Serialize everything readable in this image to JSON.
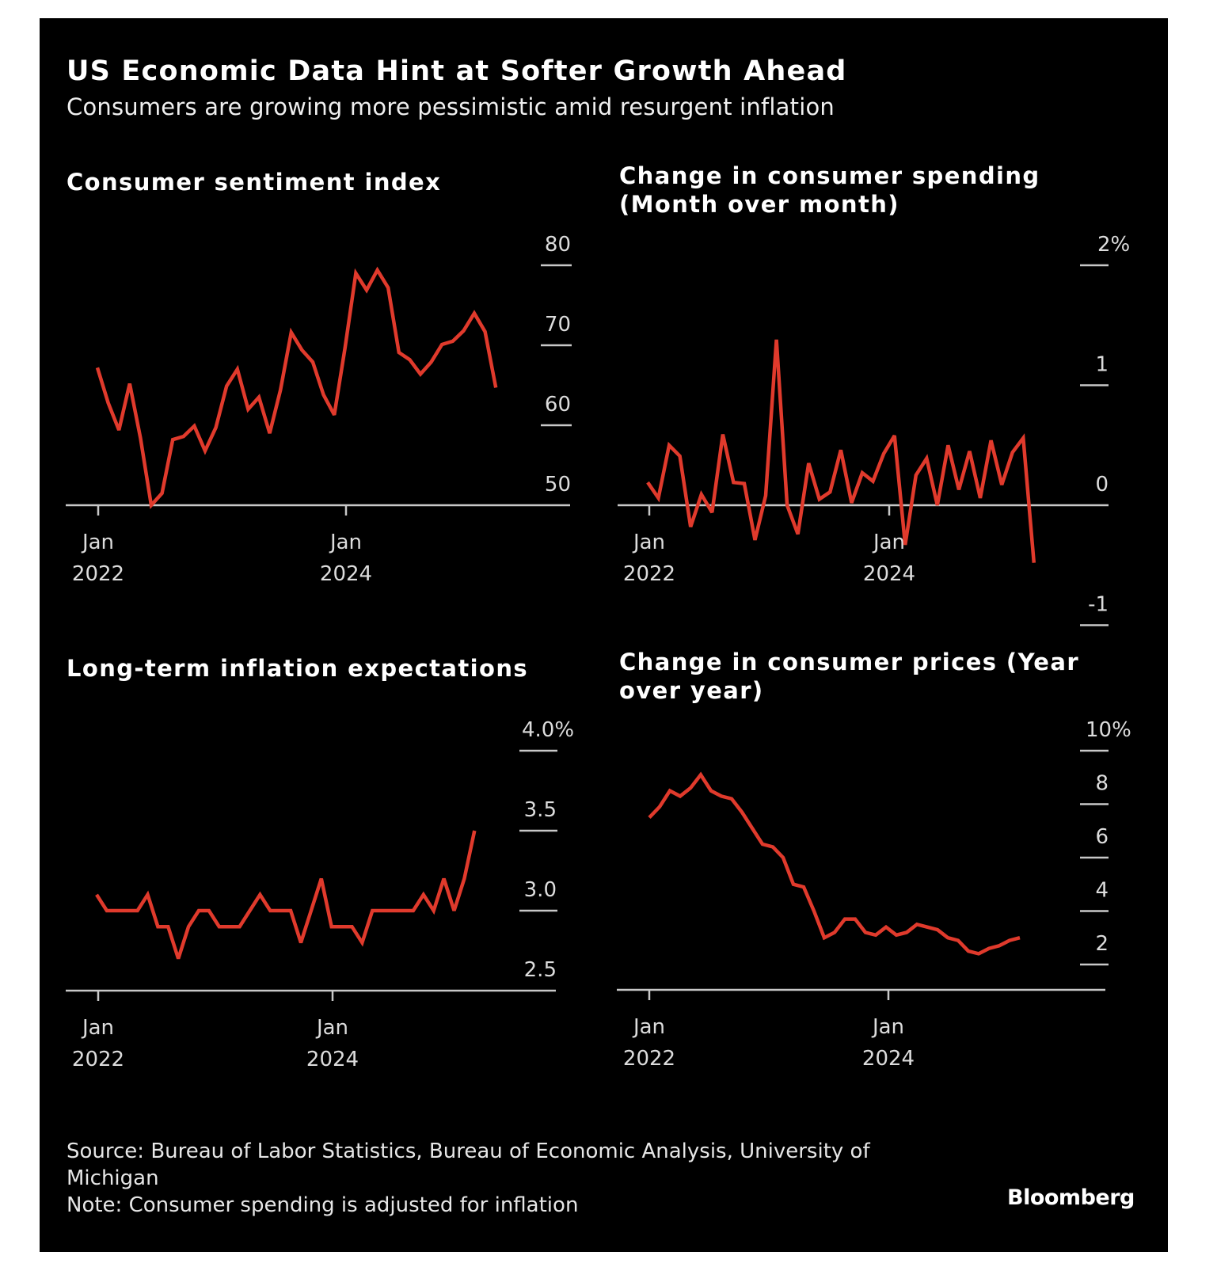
{
  "header": {
    "title": "US Economic Data Hint at Softer Growth Ahead",
    "subtitle": "Consumers are growing more pessimistic amid resurgent inflation"
  },
  "footer": {
    "source": "Source: Bureau of Labor Statistics, Bureau of Economic Analysis, University of Michigan",
    "note": "Note: Consumer spending is adjusted for inflation",
    "logo": "Bloomberg"
  },
  "colors": {
    "background": "#000000",
    "line": "#e03a2c",
    "axis": "#c8c8c8",
    "text": "#ffffff"
  },
  "chart_data": [
    {
      "type": "line",
      "title": "Consumer sentiment index",
      "xlabel": "",
      "ylabel": "",
      "x_start": "2022-01",
      "x_tick_labels": [
        [
          "Jan",
          "2022"
        ],
        [
          "Jan",
          "2024"
        ]
      ],
      "x_tick_index": [
        0,
        23
      ],
      "y_ticks": [
        50,
        60,
        70,
        80
      ],
      "y_tick_labels": [
        "50",
        "60",
        "70",
        "80"
      ],
      "ylim": [
        50,
        80
      ],
      "baseline_value": 50,
      "grid": "right-side dashes",
      "series": [
        {
          "name": "Consumer sentiment index",
          "values": [
            67.2,
            62.8,
            59.4,
            65.2,
            58.4,
            50.0,
            51.5,
            58.2,
            58.6,
            59.9,
            56.8,
            59.7,
            64.9,
            67.0,
            62.0,
            63.5,
            59.0,
            64.4,
            71.6,
            69.4,
            67.9,
            63.8,
            61.3,
            69.7,
            79.0,
            76.9,
            79.4,
            77.2,
            69.1,
            68.2,
            66.4,
            67.9,
            70.1,
            70.5,
            71.8,
            74.0,
            71.7,
            64.7
          ]
        }
      ]
    },
    {
      "type": "line",
      "title": "Change in consumer spending (Month over month)",
      "xlabel": "",
      "ylabel": "",
      "x_start": "2022-01",
      "x_tick_labels": [
        [
          "Jan",
          "2022"
        ],
        [
          "Jan",
          "2024"
        ]
      ],
      "x_tick_index": [
        0,
        23
      ],
      "y_ticks": [
        -1,
        0,
        1,
        2
      ],
      "y_tick_labels": [
        "-1",
        "0",
        "1",
        "2%"
      ],
      "ylim": [
        -1,
        2
      ],
      "baseline_value": 0,
      "grid": "right-side dashes",
      "series": [
        {
          "name": "Change in consumer spending (MoM, %)",
          "values": [
            0.19,
            0.06,
            0.5,
            0.41,
            -0.18,
            0.09,
            -0.06,
            0.59,
            0.19,
            0.18,
            -0.29,
            0.08,
            1.38,
            0.0,
            -0.24,
            0.35,
            0.05,
            0.11,
            0.46,
            0.02,
            0.27,
            0.2,
            0.43,
            0.58,
            -0.33,
            0.25,
            0.39,
            0.0,
            0.5,
            0.13,
            0.45,
            0.06,
            0.54,
            0.17,
            0.44,
            0.56,
            -0.48
          ]
        }
      ]
    },
    {
      "type": "line",
      "title": "Long-term inflation expectations",
      "xlabel": "",
      "ylabel": "",
      "x_start": "2022-01",
      "x_tick_labels": [
        [
          "Jan",
          "2022"
        ],
        [
          "Jan",
          "2024"
        ]
      ],
      "x_tick_index": [
        0,
        23
      ],
      "y_ticks": [
        2.5,
        3.0,
        3.5,
        4.0
      ],
      "y_tick_labels": [
        "2.5",
        "3.0",
        "3.5",
        "4.0%"
      ],
      "ylim": [
        2.5,
        4.0
      ],
      "baseline_value": 2.5,
      "grid": "right-side dashes",
      "series": [
        {
          "name": "Long-term inflation expectations (%)",
          "values": [
            3.1,
            3.0,
            3.0,
            3.0,
            3.0,
            3.1,
            2.9,
            2.9,
            2.7,
            2.9,
            3.0,
            3.0,
            2.9,
            2.9,
            2.9,
            3.0,
            3.1,
            3.0,
            3.0,
            3.0,
            2.8,
            3.0,
            3.2,
            2.9,
            2.9,
            2.9,
            2.8,
            3.0,
            3.0,
            3.0,
            3.0,
            3.0,
            3.1,
            3.0,
            3.2,
            3.0,
            3.2,
            3.5
          ]
        }
      ]
    },
    {
      "type": "line",
      "title": "Change in consumer prices (Year over year)",
      "xlabel": "",
      "ylabel": "",
      "x_start": "2022-01",
      "x_tick_labels": [
        [
          "Jan",
          "2022"
        ],
        [
          "Jan",
          "2024"
        ]
      ],
      "x_tick_index": [
        0,
        23
      ],
      "y_ticks": [
        2,
        4,
        6,
        8,
        10
      ],
      "y_tick_labels": [
        "2",
        "4",
        "6",
        "8",
        "10%"
      ],
      "ylim": [
        1.05,
        10
      ],
      "baseline_value": 1.05,
      "grid": "right-side dashes",
      "series": [
        {
          "name": "Change in consumer prices (YoY, %)",
          "values": [
            7.5,
            7.9,
            8.5,
            8.3,
            8.6,
            9.1,
            8.5,
            8.3,
            8.2,
            7.7,
            7.1,
            6.5,
            6.4,
            6.0,
            5.0,
            4.9,
            4.0,
            3.0,
            3.2,
            3.7,
            3.7,
            3.2,
            3.1,
            3.4,
            3.1,
            3.2,
            3.5,
            3.4,
            3.3,
            3.0,
            2.9,
            2.5,
            2.4,
            2.6,
            2.7,
            2.9,
            3.0
          ]
        }
      ]
    }
  ]
}
